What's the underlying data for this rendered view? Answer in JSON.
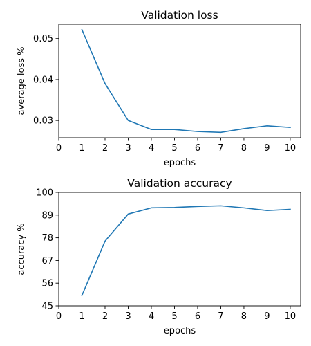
{
  "chart_data": [
    {
      "type": "line",
      "title": "Validation loss",
      "xlabel": "epochs",
      "ylabel": "average loss %",
      "xlim": [
        0,
        10.45
      ],
      "ylim": [
        0.0258,
        0.0535
      ],
      "xticks": [
        0,
        1,
        2,
        3,
        4,
        5,
        6,
        7,
        8,
        9,
        10
      ],
      "yticks": [
        0.03,
        0.04,
        0.05
      ],
      "ytick_labels": [
        "0.03",
        "0.04",
        "0.05"
      ],
      "grid": false,
      "color": "#1f77b4",
      "series": [
        {
          "x": [
            1,
            2,
            3,
            4,
            5,
            6,
            7,
            8,
            9,
            10
          ],
          "y": [
            0.0522,
            0.039,
            0.03,
            0.0278,
            0.0278,
            0.0273,
            0.0271,
            0.028,
            0.0287,
            0.0283
          ]
        }
      ]
    },
    {
      "type": "line",
      "title": "Validation accuracy",
      "xlabel": "epochs",
      "ylabel": "accuracy %",
      "xlim": [
        0,
        10.45
      ],
      "ylim": [
        45,
        100
      ],
      "xticks": [
        0,
        1,
        2,
        3,
        4,
        5,
        6,
        7,
        8,
        9,
        10
      ],
      "yticks": [
        45,
        56,
        67,
        78,
        89,
        100
      ],
      "ytick_labels": [
        "45",
        "56",
        "67",
        "78",
        "89",
        "100"
      ],
      "grid": false,
      "color": "#1f77b4",
      "series": [
        {
          "x": [
            1,
            2,
            3,
            4,
            5,
            6,
            7,
            8,
            9,
            10
          ],
          "y": [
            50.0,
            76.4,
            89.5,
            92.5,
            92.7,
            93.2,
            93.5,
            92.5,
            91.2,
            91.8
          ]
        }
      ]
    }
  ]
}
